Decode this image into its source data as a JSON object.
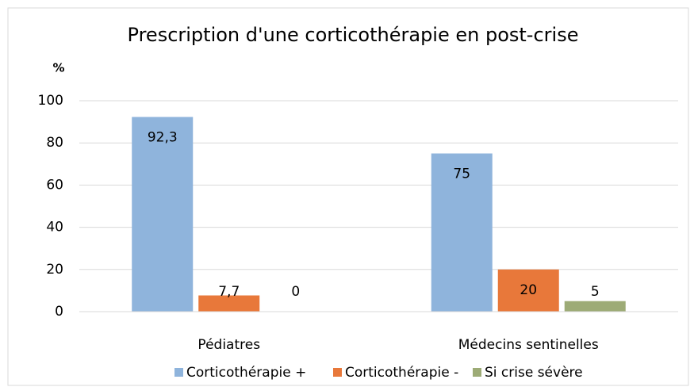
{
  "chart_data": {
    "type": "bar",
    "title": "Prescription d'une corticothérapie en post-crise",
    "y_label": "%",
    "categories": [
      "Pédiatres",
      "Médecins sentinelles"
    ],
    "series": [
      {
        "name": "Corticothérapie +",
        "color": "#8fb4dc",
        "values": [
          92.3,
          75
        ],
        "value_labels": [
          "92,3",
          "75"
        ]
      },
      {
        "name": "Corticothérapie -",
        "color": "#e8783a",
        "values": [
          7.7,
          20
        ],
        "value_labels": [
          "7,7",
          "20"
        ]
      },
      {
        "name": "Si crise sévère",
        "color": "#9dab76",
        "values": [
          0,
          5
        ],
        "value_labels": [
          "0",
          "5"
        ]
      }
    ],
    "ylim": [
      0,
      100
    ],
    "yticks": [
      0,
      20,
      40,
      60,
      80,
      100
    ],
    "grid": true,
    "legend": "bottom"
  }
}
